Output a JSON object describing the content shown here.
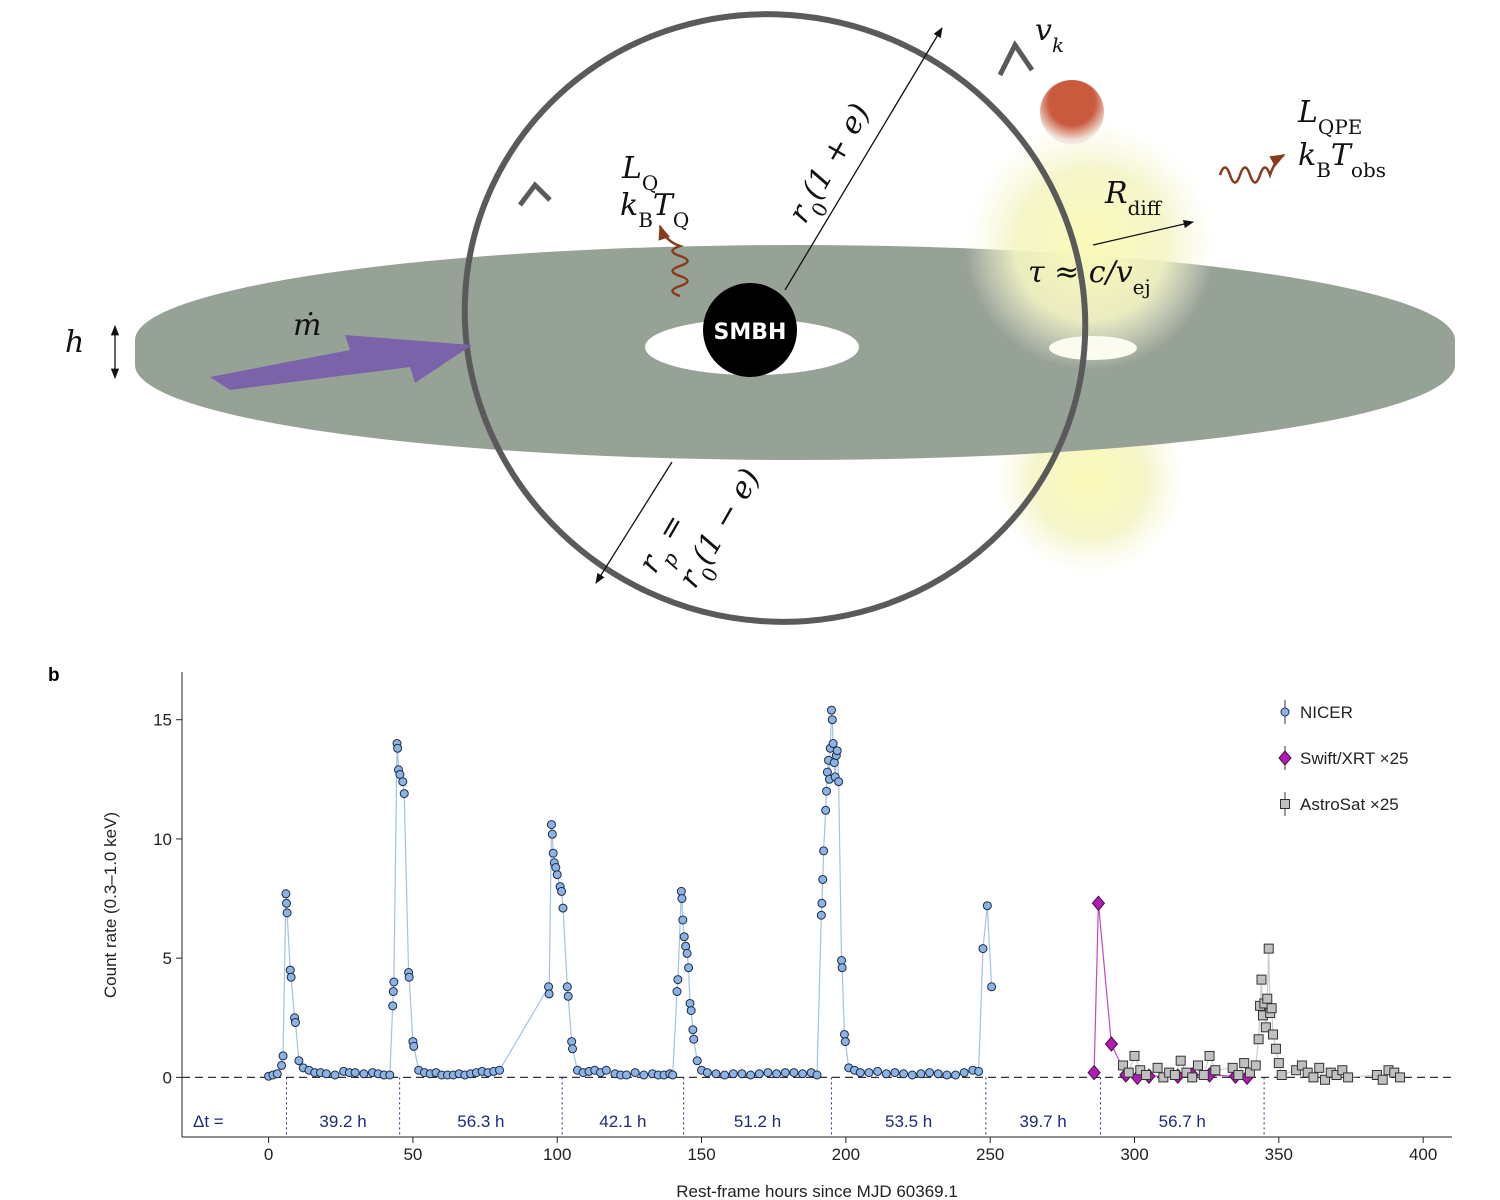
{
  "diagram": {
    "smbh": "SMBH",
    "labels": {
      "vk": [
        {
          "text": "v"
        },
        {
          "sub": "k"
        }
      ],
      "lqpe": [
        {
          "text": "L"
        },
        {
          "sub": "QPE"
        }
      ],
      "kbtobs": [
        {
          "text": "k"
        },
        {
          "sub": "B"
        },
        {
          "text": "T"
        },
        {
          "sub": "obs"
        }
      ],
      "lq": [
        {
          "text": "L"
        },
        {
          "sub": "Q"
        }
      ],
      "kbtq": [
        {
          "text": "k"
        },
        {
          "sub": "B"
        },
        {
          "text": "T"
        },
        {
          "sub": "Q"
        }
      ],
      "rdiff": [
        {
          "text": "R"
        },
        {
          "sub": "diff"
        }
      ],
      "tau": [
        {
          "text": "τ ≈ c/v"
        },
        {
          "sub": "ej"
        }
      ],
      "apo": [
        {
          "text": "r"
        },
        {
          "sub": "0"
        },
        {
          "text": "(1 + e)"
        }
      ],
      "rp": [
        {
          "text": "r"
        },
        {
          "sub": "p"
        },
        {
          "text": " ="
        }
      ],
      "peri": [
        {
          "text": "r"
        },
        {
          "sub": "0"
        },
        {
          "text": "(1 − e)"
        }
      ],
      "mdot": [
        {
          "text": "ṁ"
        }
      ],
      "h": [
        {
          "text": "h"
        }
      ]
    }
  },
  "chart_data": {
    "type": "scatter",
    "panel": "b",
    "xlabel": "Rest-frame hours since MJD 60369.1",
    "ylabel": "Count rate (0.3–1.0 keV)",
    "xlim": [
      -30,
      410
    ],
    "ylim": [
      -2.5,
      17
    ],
    "xticks": [
      0,
      50,
      100,
      150,
      200,
      250,
      300,
      350,
      400
    ],
    "yticks": [
      0,
      5,
      10,
      15
    ],
    "hline": 0,
    "legend": "upper right",
    "delta_label": "Δt =",
    "peak_times": [
      6.2,
      45.4,
      101.7,
      143.8,
      195.0,
      248.5,
      288.2,
      344.9
    ],
    "intervals": [
      "39.2 h",
      "56.3 h",
      "42.1 h",
      "51.2 h",
      "53.5 h",
      "39.7 h",
      "56.7 h"
    ],
    "series": [
      {
        "name": "NICER",
        "color": "#8db3e2",
        "marker": "circle",
        "x": [
          0,
          1.5,
          3,
          4.5,
          5,
          6,
          6.2,
          6.4,
          7.5,
          7.8,
          9,
          9.3,
          10.5,
          12,
          14,
          16,
          18,
          20,
          23,
          26,
          28,
          30,
          33,
          36,
          38,
          40,
          42,
          43,
          43.2,
          43.4,
          44.5,
          44.7,
          45,
          45.5,
          46.5,
          47,
          48.5,
          48.7,
          50,
          50.3,
          52,
          54,
          56,
          58,
          60,
          62,
          64,
          66,
          68,
          70,
          72,
          74,
          76,
          78,
          80,
          97,
          97.2,
          98,
          98.3,
          98.6,
          99,
          99.5,
          100,
          101,
          101.5,
          102,
          103.5,
          103.8,
          105,
          105.3,
          107,
          109,
          111,
          113,
          115,
          117,
          120,
          122,
          124,
          127,
          130,
          133,
          135,
          137,
          139,
          140,
          141.5,
          141.8,
          143,
          143.2,
          143.5,
          144,
          144.5,
          145,
          145.5,
          146,
          146.4,
          147,
          147.3,
          148.5,
          150,
          152,
          155,
          158,
          161,
          164,
          167,
          170,
          173,
          176,
          179,
          182,
          185,
          188,
          190,
          191.5,
          191.7,
          192,
          192.3,
          193,
          193.3,
          193.6,
          194,
          194.3,
          194.6,
          195,
          195.3,
          195.6,
          196,
          196.3,
          196.7,
          197,
          197.5,
          198.5,
          198.7,
          199.5,
          199.8,
          201,
          203,
          205,
          208,
          211,
          214,
          217,
          220,
          223,
          226,
          229,
          232,
          235,
          238,
          241,
          244,
          246,
          247.5,
          249,
          250.5
        ],
        "y": [
          0.05,
          0.1,
          0.15,
          0.5,
          0.9,
          7.7,
          7.3,
          6.9,
          4.5,
          4.2,
          2.5,
          2.3,
          0.7,
          0.4,
          0.3,
          0.2,
          0.2,
          0.15,
          0.1,
          0.25,
          0.2,
          0.2,
          0.15,
          0.2,
          0.15,
          0.1,
          0.1,
          3.0,
          3.6,
          4.0,
          14.0,
          13.8,
          12.9,
          12.7,
          12.4,
          11.9,
          4.4,
          4.2,
          1.5,
          1.3,
          0.3,
          0.2,
          0.15,
          0.2,
          0.1,
          0.1,
          0.1,
          0.15,
          0.1,
          0.15,
          0.2,
          0.25,
          0.2,
          0.25,
          0.3,
          3.8,
          3.5,
          10.6,
          10.2,
          9.4,
          9.0,
          8.8,
          8.5,
          8.0,
          7.8,
          7.1,
          3.8,
          3.4,
          1.5,
          1.2,
          0.3,
          0.2,
          0.25,
          0.3,
          0.2,
          0.3,
          0.15,
          0.1,
          0.1,
          0.2,
          0.1,
          0.15,
          0.1,
          0.1,
          0.15,
          0.1,
          3.6,
          4.1,
          7.8,
          7.5,
          6.6,
          5.9,
          5.5,
          5.2,
          4.6,
          3.1,
          2.8,
          2.0,
          1.6,
          0.7,
          0.3,
          0.2,
          0.15,
          0.1,
          0.15,
          0.15,
          0.1,
          0.15,
          0.2,
          0.15,
          0.2,
          0.2,
          0.15,
          0.2,
          0.1,
          6.8,
          7.3,
          8.3,
          9.5,
          11.2,
          12.0,
          12.8,
          13.3,
          12.5,
          13.8,
          15.4,
          15.0,
          14.0,
          13.2,
          12.6,
          13.5,
          13.7,
          12.4,
          4.9,
          4.6,
          1.8,
          1.5,
          0.4,
          0.3,
          0.2,
          0.2,
          0.25,
          0.15,
          0.2,
          0.15,
          0.1,
          0.15,
          0.2,
          0.15,
          0.1,
          0.1,
          0.2,
          0.3,
          0.25,
          5.4,
          7.2,
          3.8
        ]
      },
      {
        "name": "Swift/XRT ×25",
        "color": "#b01cb5",
        "marker": "diamond",
        "x": [
          286,
          287.5,
          292,
          297,
          301,
          305,
          315,
          320,
          326,
          335,
          339
        ],
        "y": [
          0.2,
          7.3,
          1.4,
          0.1,
          0.0,
          0.05,
          0.05,
          0.1,
          0.1,
          0.05,
          0.0
        ]
      },
      {
        "name": "AstroSat ×25",
        "color": "#c0c0c0",
        "marker": "square",
        "x": [
          296,
          298,
          300,
          302,
          304,
          308,
          310,
          312,
          314,
          316,
          318,
          320,
          322,
          324,
          326,
          328,
          334,
          336,
          338,
          340,
          342,
          343,
          343.5,
          344,
          344.5,
          345,
          345.5,
          346,
          346.5,
          347,
          347.5,
          348,
          349,
          350,
          351,
          356,
          358,
          360,
          362,
          364,
          366,
          368,
          370,
          372,
          374,
          384,
          386,
          388,
          390,
          392
        ],
        "y": [
          0.5,
          0.2,
          0.9,
          0.3,
          0.1,
          0.4,
          0.0,
          0.2,
          0.1,
          0.7,
          0.2,
          0.0,
          0.5,
          0.1,
          0.9,
          0.3,
          0.4,
          0.1,
          0.6,
          0.2,
          0.5,
          1.6,
          3.0,
          4.1,
          2.6,
          3.1,
          2.1,
          3.3,
          5.4,
          2.7,
          2.9,
          1.8,
          1.2,
          0.6,
          0.1,
          0.3,
          0.5,
          0.2,
          0.0,
          0.4,
          -0.1,
          0.2,
          0.1,
          0.3,
          0.0,
          0.1,
          -0.1,
          0.3,
          0.2,
          0.0
        ]
      }
    ]
  }
}
